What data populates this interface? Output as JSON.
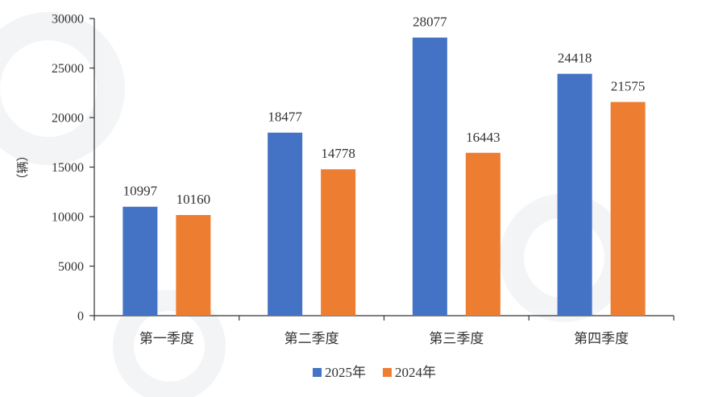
{
  "chart_data": {
    "type": "bar",
    "title": "",
    "xlabel": "",
    "ylabel": "（辆）",
    "categories": [
      "第一季度",
      "第二季度",
      "第三季度",
      "第四季度"
    ],
    "series": [
      {
        "name": "2025年",
        "color": "#4472C4",
        "values": [
          10997,
          18477,
          28077,
          24418
        ]
      },
      {
        "name": "2024年",
        "color": "#ED7D31",
        "values": [
          10160,
          14778,
          16443,
          21575
        ]
      }
    ],
    "ylim": [
      0,
      30000
    ],
    "yticks": [
      0,
      5000,
      10000,
      15000,
      20000,
      25000,
      30000
    ],
    "grid": false,
    "legend_position": "bottom-center"
  }
}
